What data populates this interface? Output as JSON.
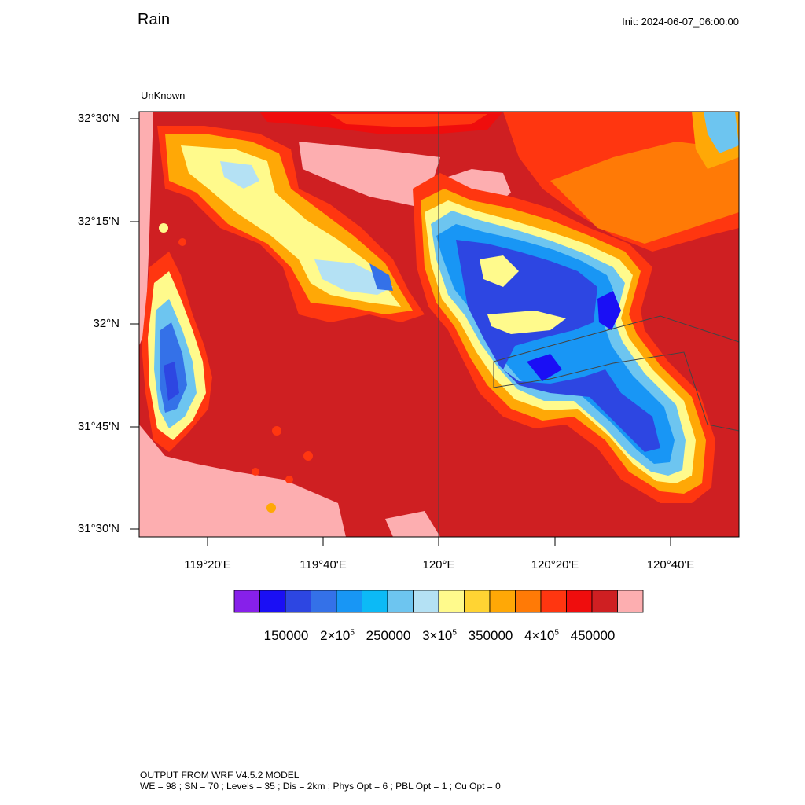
{
  "header": {
    "title": "Rain",
    "init": "Init: 2024-06-07_06:00:00",
    "sublabel": "UnKnown"
  },
  "map": {
    "lat_labels": [
      "32°30'N",
      "32°15'N",
      "32°N",
      "31°45'N",
      "31°30'N"
    ],
    "lon_labels": [
      "119°20'E",
      "119°40'E",
      "120°E",
      "120°20'E",
      "120°40'E"
    ],
    "field_colors": {
      "background": "#cf1f22",
      "pink": "#fdaeb0",
      "bright_red": "#ef0d0d",
      "red_orange": "#ff3610",
      "orange": "#ff7a06",
      "amber": "#ffa806",
      "gold": "#ffd433",
      "yellow": "#fffa8c",
      "pale_blue": "#b4e1f4",
      "light_blue": "#6dc5f0",
      "cyan": "#0cbaf6",
      "sky": "#1896f5",
      "blue": "#3471e8",
      "royal": "#2d46e2",
      "deep_blue": "#1a0ff5"
    }
  },
  "colorbar": {
    "colors": [
      "#8720ea",
      "#1a0ff5",
      "#2d46e2",
      "#3471e8",
      "#1896f5",
      "#0cbaf6",
      "#6dc5f0",
      "#b4e1f4",
      "#fffa8c",
      "#ffd433",
      "#ffa806",
      "#ff7a06",
      "#ff3610",
      "#ef0d0d",
      "#cf1f22",
      "#fdaeb0"
    ],
    "labels": [
      {
        "base": "150000",
        "sup": ""
      },
      {
        "base": "2×10",
        "sup": "5"
      },
      {
        "base": "250000",
        "sup": ""
      },
      {
        "base": "3×10",
        "sup": "5"
      },
      {
        "base": "350000",
        "sup": ""
      },
      {
        "base": "4×10",
        "sup": "5"
      },
      {
        "base": "450000",
        "sup": ""
      }
    ]
  },
  "footer": {
    "line1": "OUTPUT FROM WRF V4.5.2 MODEL",
    "line2": "WE = 98 ; SN = 70 ; Levels = 35 ; Dis = 2km ; Phys Opt = 6 ; PBL Opt = 1 ; Cu Opt = 0"
  }
}
